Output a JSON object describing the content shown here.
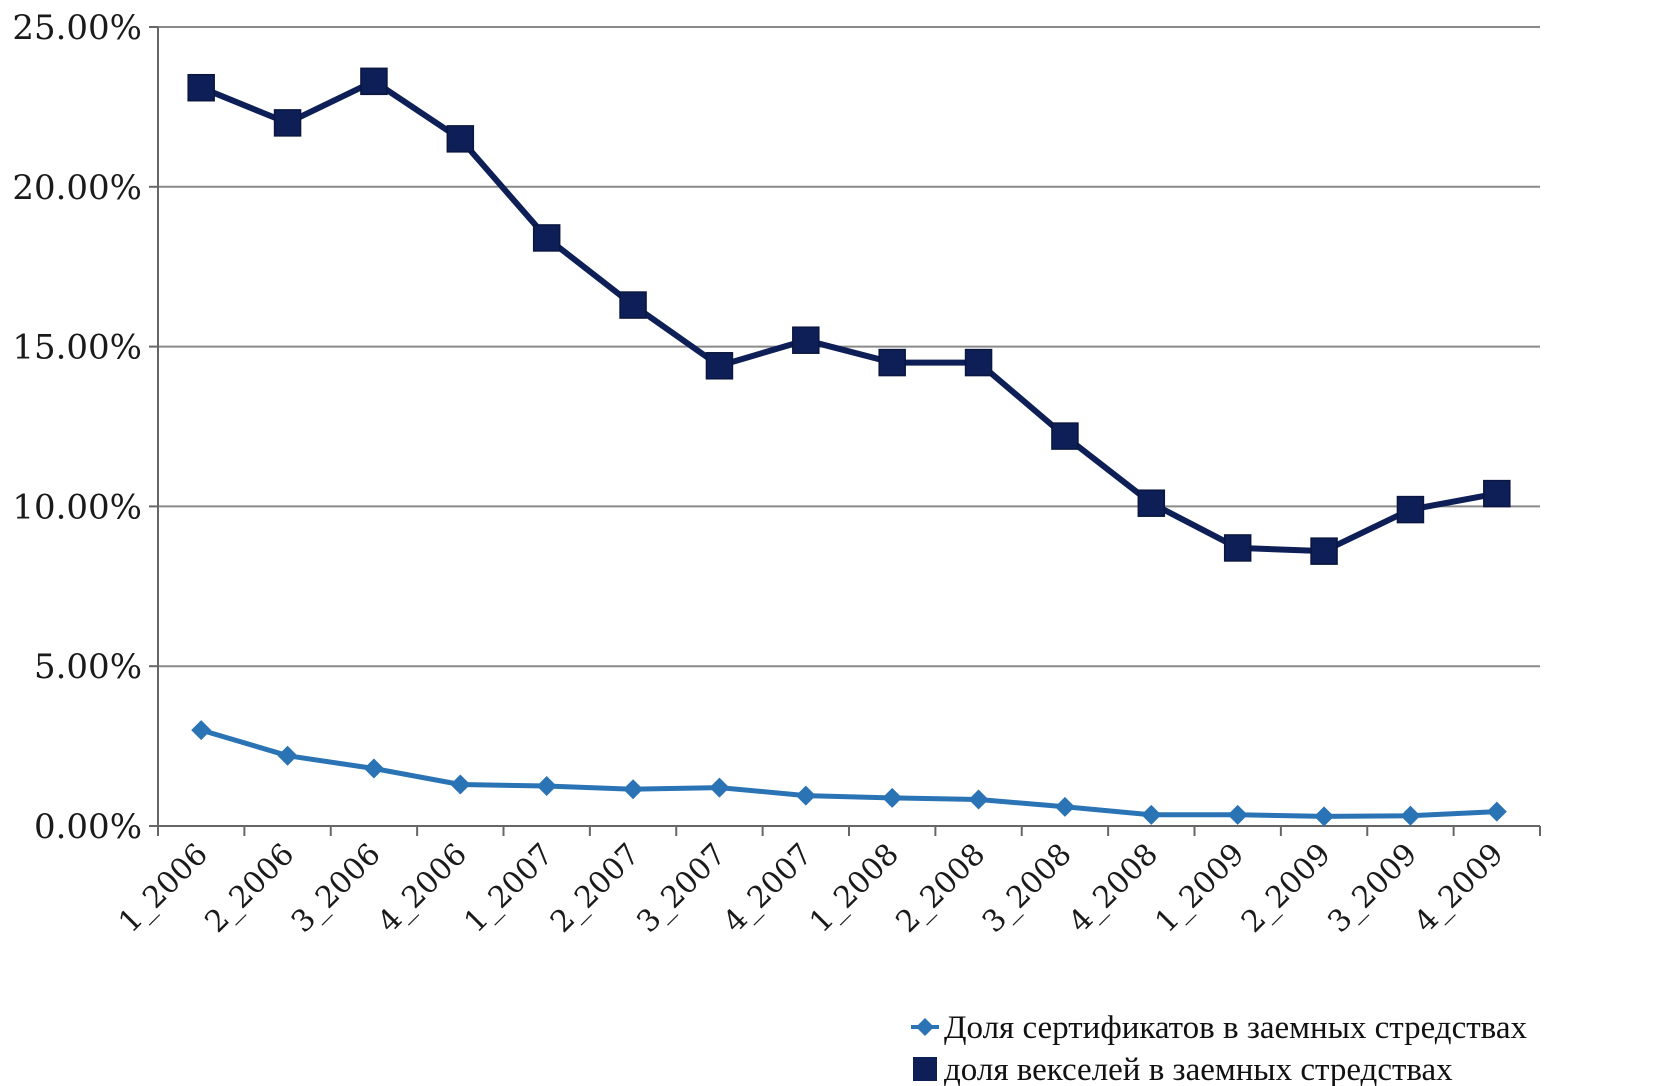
{
  "chart_data": {
    "type": "line",
    "title": "",
    "xlabel": "",
    "ylabel": "",
    "ylim": [
      0,
      0.25
    ],
    "yticks": [
      0,
      0.05,
      0.1,
      0.15,
      0.2,
      0.25
    ],
    "ytick_labels": [
      "0.00%",
      "5.00%",
      "10.00%",
      "15.00%",
      "20.00%",
      "25.00%"
    ],
    "grid": true,
    "legend_position": "bottom-right",
    "categories": [
      "1_2006",
      "2_2006",
      "3_2006",
      "4_2006",
      "1_2007",
      "2_2007",
      "3_2007",
      "4_2007",
      "1_2008",
      "2_2008",
      "3_2008",
      "4_2008",
      "1_2009",
      "2_2009",
      "3_2009",
      "4_2009"
    ],
    "series": [
      {
        "name": "Доля сертификатов в заемных стредствах",
        "color": "#2a73b5",
        "marker": "diamond",
        "values": [
          0.03,
          0.022,
          0.018,
          0.013,
          0.0125,
          0.0115,
          0.012,
          0.0095,
          0.0088,
          0.0083,
          0.006,
          0.0035,
          0.0035,
          0.003,
          0.0032,
          0.0045
        ]
      },
      {
        "name": "доля векселей в заемных стредствах",
        "color": "#0d1f56",
        "marker": "square",
        "values": [
          0.231,
          0.22,
          0.233,
          0.215,
          0.184,
          0.163,
          0.144,
          0.152,
          0.145,
          0.145,
          0.122,
          0.101,
          0.087,
          0.086,
          0.099,
          0.104
        ]
      }
    ]
  }
}
